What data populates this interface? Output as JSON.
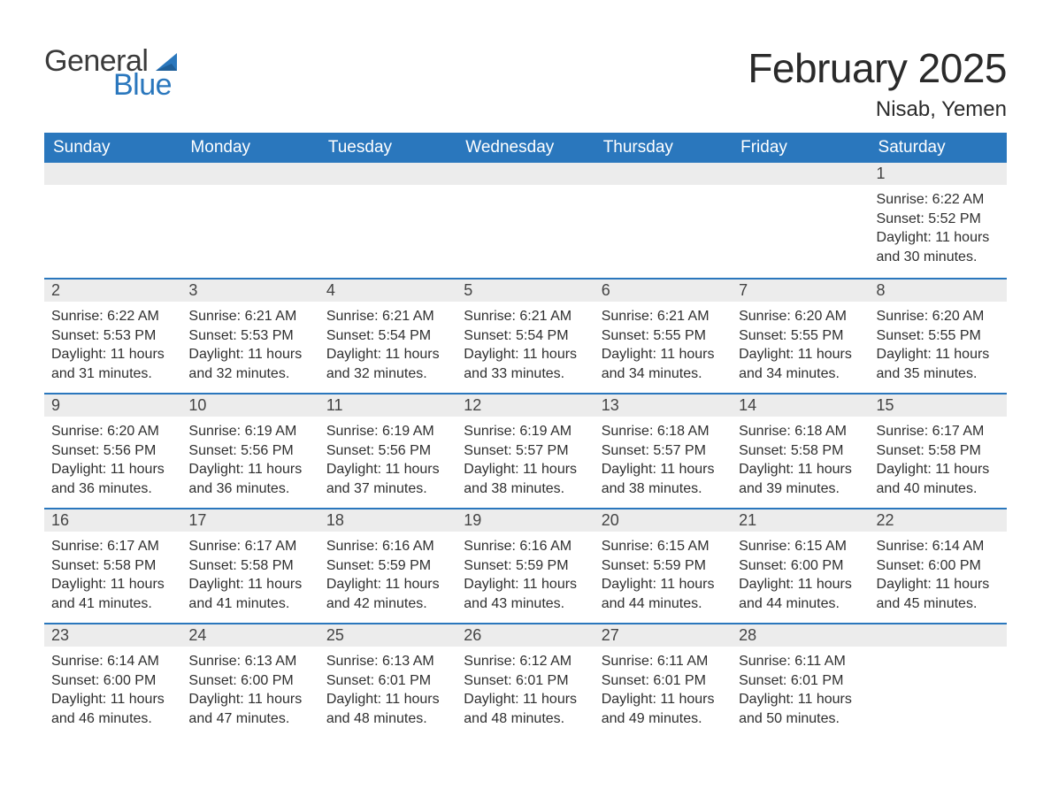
{
  "logo": {
    "textA": "General",
    "textB": "Blue",
    "sail_color": "#2a77bd"
  },
  "title": "February 2025",
  "location": "Nisab, Yemen",
  "colors": {
    "header_bg": "#2a77bd",
    "header_text": "#ffffff",
    "daynum_bg": "#ececec",
    "border_top": "#2a77bd",
    "body_text": "#2f2f2f",
    "page_bg": "#ffffff"
  },
  "weekdays": [
    "Sunday",
    "Monday",
    "Tuesday",
    "Wednesday",
    "Thursday",
    "Friday",
    "Saturday"
  ],
  "weeks": [
    [
      null,
      null,
      null,
      null,
      null,
      null,
      {
        "n": "1",
        "sr": "6:22 AM",
        "ss": "5:52 PM",
        "dl": "11 hours and 30 minutes."
      }
    ],
    [
      {
        "n": "2",
        "sr": "6:22 AM",
        "ss": "5:53 PM",
        "dl": "11 hours and 31 minutes."
      },
      {
        "n": "3",
        "sr": "6:21 AM",
        "ss": "5:53 PM",
        "dl": "11 hours and 32 minutes."
      },
      {
        "n": "4",
        "sr": "6:21 AM",
        "ss": "5:54 PM",
        "dl": "11 hours and 32 minutes."
      },
      {
        "n": "5",
        "sr": "6:21 AM",
        "ss": "5:54 PM",
        "dl": "11 hours and 33 minutes."
      },
      {
        "n": "6",
        "sr": "6:21 AM",
        "ss": "5:55 PM",
        "dl": "11 hours and 34 minutes."
      },
      {
        "n": "7",
        "sr": "6:20 AM",
        "ss": "5:55 PM",
        "dl": "11 hours and 34 minutes."
      },
      {
        "n": "8",
        "sr": "6:20 AM",
        "ss": "5:55 PM",
        "dl": "11 hours and 35 minutes."
      }
    ],
    [
      {
        "n": "9",
        "sr": "6:20 AM",
        "ss": "5:56 PM",
        "dl": "11 hours and 36 minutes."
      },
      {
        "n": "10",
        "sr": "6:19 AM",
        "ss": "5:56 PM",
        "dl": "11 hours and 36 minutes."
      },
      {
        "n": "11",
        "sr": "6:19 AM",
        "ss": "5:56 PM",
        "dl": "11 hours and 37 minutes."
      },
      {
        "n": "12",
        "sr": "6:19 AM",
        "ss": "5:57 PM",
        "dl": "11 hours and 38 minutes."
      },
      {
        "n": "13",
        "sr": "6:18 AM",
        "ss": "5:57 PM",
        "dl": "11 hours and 38 minutes."
      },
      {
        "n": "14",
        "sr": "6:18 AM",
        "ss": "5:58 PM",
        "dl": "11 hours and 39 minutes."
      },
      {
        "n": "15",
        "sr": "6:17 AM",
        "ss": "5:58 PM",
        "dl": "11 hours and 40 minutes."
      }
    ],
    [
      {
        "n": "16",
        "sr": "6:17 AM",
        "ss": "5:58 PM",
        "dl": "11 hours and 41 minutes."
      },
      {
        "n": "17",
        "sr": "6:17 AM",
        "ss": "5:58 PM",
        "dl": "11 hours and 41 minutes."
      },
      {
        "n": "18",
        "sr": "6:16 AM",
        "ss": "5:59 PM",
        "dl": "11 hours and 42 minutes."
      },
      {
        "n": "19",
        "sr": "6:16 AM",
        "ss": "5:59 PM",
        "dl": "11 hours and 43 minutes."
      },
      {
        "n": "20",
        "sr": "6:15 AM",
        "ss": "5:59 PM",
        "dl": "11 hours and 44 minutes."
      },
      {
        "n": "21",
        "sr": "6:15 AM",
        "ss": "6:00 PM",
        "dl": "11 hours and 44 minutes."
      },
      {
        "n": "22",
        "sr": "6:14 AM",
        "ss": "6:00 PM",
        "dl": "11 hours and 45 minutes."
      }
    ],
    [
      {
        "n": "23",
        "sr": "6:14 AM",
        "ss": "6:00 PM",
        "dl": "11 hours and 46 minutes."
      },
      {
        "n": "24",
        "sr": "6:13 AM",
        "ss": "6:00 PM",
        "dl": "11 hours and 47 minutes."
      },
      {
        "n": "25",
        "sr": "6:13 AM",
        "ss": "6:01 PM",
        "dl": "11 hours and 48 minutes."
      },
      {
        "n": "26",
        "sr": "6:12 AM",
        "ss": "6:01 PM",
        "dl": "11 hours and 48 minutes."
      },
      {
        "n": "27",
        "sr": "6:11 AM",
        "ss": "6:01 PM",
        "dl": "11 hours and 49 minutes."
      },
      {
        "n": "28",
        "sr": "6:11 AM",
        "ss": "6:01 PM",
        "dl": "11 hours and 50 minutes."
      },
      null
    ]
  ],
  "labels": {
    "sunrise": "Sunrise: ",
    "sunset": "Sunset: ",
    "daylight": "Daylight: "
  }
}
